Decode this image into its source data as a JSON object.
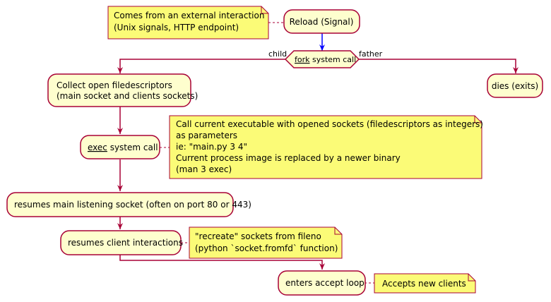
{
  "nodes": {
    "reload": {
      "label": "Reload (Signal)"
    },
    "fork": {
      "keyword": "fork",
      "rest": " system call",
      "branch_left": "child",
      "branch_right": "father"
    },
    "collect": {
      "line1": "Collect open filedescriptors",
      "line2": "(main socket and clients sockets)"
    },
    "dies": {
      "label": "dies (exits)"
    },
    "exec": {
      "keyword": "exec",
      "rest": " system call"
    },
    "resumes_main": {
      "label": "resumes main listening socket (often on port 80 or 443)"
    },
    "resumes_clients": {
      "label": "resumes client interactions"
    },
    "accept_loop": {
      "label": "enters accept loop"
    }
  },
  "notes": {
    "external": {
      "line1": "Comes from an external interaction",
      "line2": "(Unix signals, HTTP endpoint)"
    },
    "exec_note": {
      "line1": "Call current executable with opened sockets (filedescriptors as integers)",
      "line2": "as parameters",
      "line3": "ie: \"main.py 3 4\"",
      "line4": "Current process image is replaced by a newer binary",
      "line5": "(man 3 exec)"
    },
    "recreate": {
      "line1": "\"recreate\" sockets from fileno",
      "line2": "(python `socket.fromfd` function)"
    },
    "accepts": {
      "label": "Accepts new clients"
    }
  },
  "colors": {
    "box_fill": "#FEFECE",
    "box_stroke": "#A80036",
    "note_fill": "#FBFB77",
    "arrow": "#A80036",
    "arrow_first": "#0000FF"
  }
}
